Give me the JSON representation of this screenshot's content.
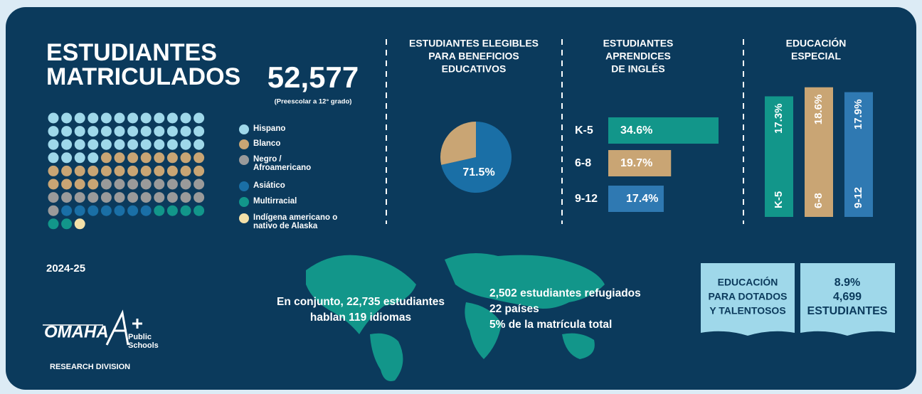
{
  "title": [
    "ESTUDIANTES",
    "MATRICULADOS"
  ],
  "enrollment": {
    "total": "52,577",
    "note": "(Preescolar a 12° grado)",
    "year": "2024-25"
  },
  "chart_data": [
    {
      "type": "waffle",
      "series": [
        {
          "name": "Hispano",
          "color": "#9fd8ea",
          "values": [
            40
          ]
        },
        {
          "name": "Blanco",
          "color": "#c9a574",
          "values": [
            24
          ]
        },
        {
          "name": "Negro / Afroamericano",
          "color": "#9a9a9a",
          "values": [
            21
          ]
        },
        {
          "name": "Asiático",
          "color": "#1a6fa6",
          "values": [
            7
          ]
        },
        {
          "name": "Multirracial",
          "color": "#12968a",
          "values": [
            6
          ]
        },
        {
          "name": "Indígena americano o nativo de Alaska",
          "color": "#f3e0a8",
          "values": [
            1
          ]
        }
      ]
    },
    {
      "type": "pie",
      "title": [
        "ESTUDIANTES ELEGIBLES",
        "PARA BENEFICIOS",
        "EDUCATIVOS"
      ],
      "values": [
        71.5,
        28.5
      ],
      "value_labels": [
        "71.5%",
        null
      ],
      "colors": [
        "#1a6fa6",
        "#c9a574"
      ]
    },
    {
      "type": "hbar",
      "title": [
        "ESTUDIANTES",
        "APRENDICES",
        "DE INGLÉS"
      ],
      "categories": [
        "K-5",
        "6-8",
        "9-12"
      ],
      "values": [
        34.6,
        19.7,
        17.4
      ],
      "value_labels": [
        "34.6%",
        "19.7%",
        "17.4%"
      ],
      "colors": [
        "#12968a",
        "#c9a574",
        "#2f79b2"
      ]
    },
    {
      "type": "vbar",
      "title": [
        "EDUCACIÓN",
        "ESPECIAL"
      ],
      "categories": [
        "K-5",
        "6-8",
        "9-12"
      ],
      "values": [
        17.3,
        18.6,
        17.9
      ],
      "value_labels": [
        "17.3%",
        "18.6%",
        "17.9%"
      ],
      "colors": [
        "#12968a",
        "#c9a574",
        "#2f79b2"
      ]
    }
  ],
  "languages": [
    "En conjunto, 22,735 estudiantes",
    "hablan 119 idiomas"
  ],
  "refugees": [
    "2,502 estudiantes refugiados",
    "22 países",
    "5% de la matrícula total"
  ],
  "gifted": {
    "label": [
      "EDUCACIÓN",
      "PARA DOTADOS",
      "Y TALENTOSOS"
    ],
    "stats": [
      "8.9%",
      "4,699",
      "ESTUDIANTES"
    ]
  },
  "logo": {
    "name": "OMAHA",
    "sub": [
      "Public",
      "Schools"
    ],
    "division": "RESEARCH DIVISION"
  }
}
